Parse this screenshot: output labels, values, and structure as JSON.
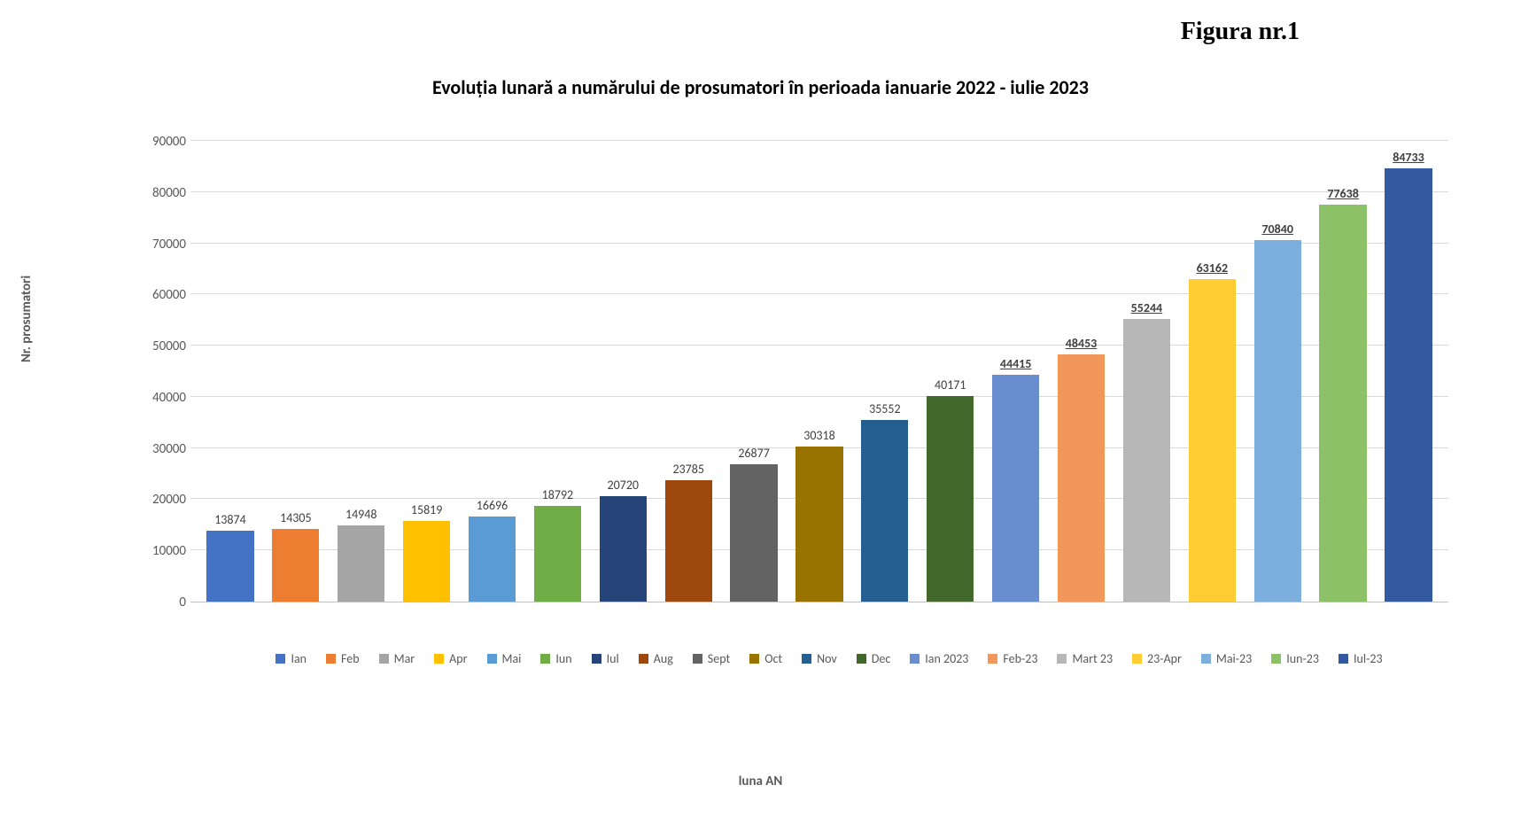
{
  "figure_label": "Figura nr.1",
  "chart": {
    "type": "bar",
    "title": "Evoluția lunară a numărului de prosumatori în perioada ianuarie 2022 - iulie 2023",
    "title_fontsize": 22,
    "ylabel": "Nr. prosumatori",
    "xlabel": "luna AN",
    "label_fontsize": 15,
    "ylim_min": 0,
    "ylim_max": 90000,
    "ytick_step": 10000,
    "background_color": "#ffffff",
    "grid_color": "#d9d9d9",
    "axis_color": "#bfbfbf",
    "text_color": "#595959",
    "bar_width_ratio": 0.72,
    "underline_from_index": 12,
    "data": [
      {
        "category": "Ian",
        "value": 13874,
        "color": "#4472c4"
      },
      {
        "category": "Feb",
        "value": 14305,
        "color": "#ed7d31"
      },
      {
        "category": "Mar",
        "value": 14948,
        "color": "#a5a5a5"
      },
      {
        "category": "Apr",
        "value": 15819,
        "color": "#ffc000"
      },
      {
        "category": "Mai",
        "value": 16696,
        "color": "#5b9bd5"
      },
      {
        "category": "Iun",
        "value": 18792,
        "color": "#70ad47"
      },
      {
        "category": "Iul",
        "value": 20720,
        "color": "#264478"
      },
      {
        "category": "Aug",
        "value": 23785,
        "color": "#9e480e"
      },
      {
        "category": "Sept",
        "value": 26877,
        "color": "#636363"
      },
      {
        "category": "Oct",
        "value": 30318,
        "color": "#997300"
      },
      {
        "category": "Nov",
        "value": 35552,
        "color": "#255e91"
      },
      {
        "category": "Dec",
        "value": 40171,
        "color": "#43682b"
      },
      {
        "category": "Ian 2023",
        "value": 44415,
        "color": "#698ed0"
      },
      {
        "category": "Feb-23",
        "value": 48453,
        "color": "#f1975a"
      },
      {
        "category": "Mart 23",
        "value": 55244,
        "color": "#b7b7b7"
      },
      {
        "category": "23-Apr",
        "value": 63162,
        "color": "#ffcd33"
      },
      {
        "category": "Mai-23",
        "value": 70840,
        "color": "#7cafdd"
      },
      {
        "category": "Iun-23",
        "value": 77638,
        "color": "#8cc168"
      },
      {
        "category": "Iul-23",
        "value": 84733,
        "color": "#335aa1"
      }
    ]
  }
}
